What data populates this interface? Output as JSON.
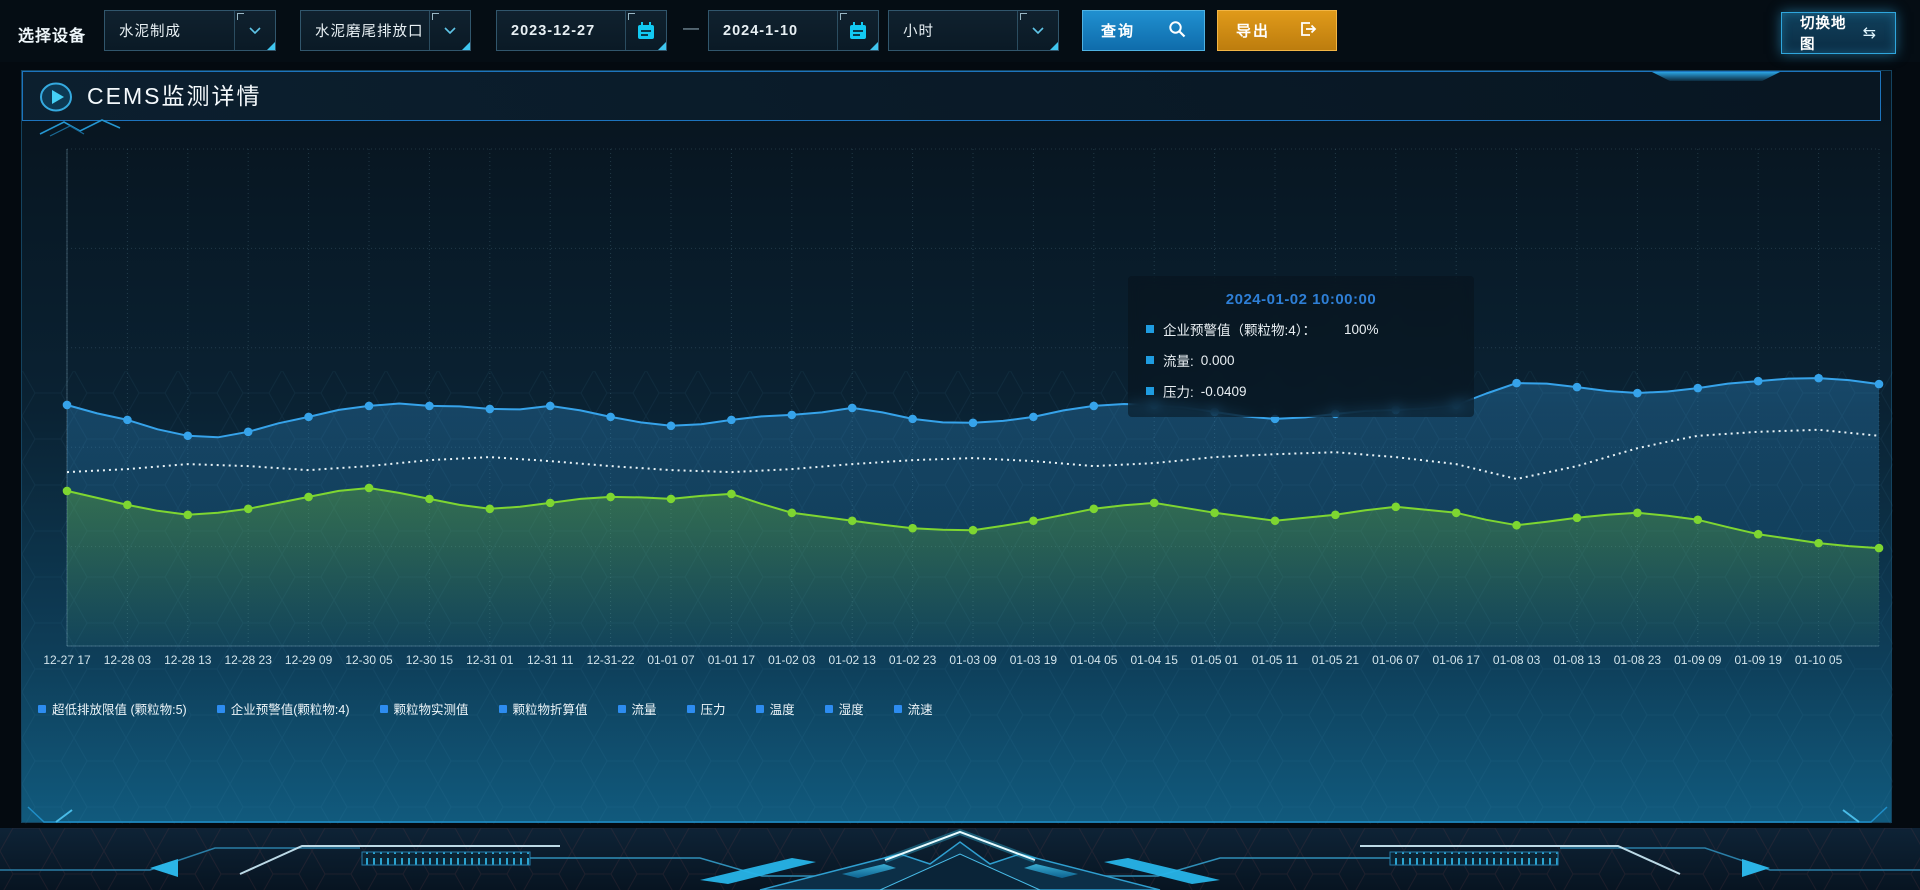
{
  "toolbar": {
    "device_label": "选择设备",
    "select_process": "水泥制成",
    "select_outlet": "水泥磨尾排放口",
    "date_start": "2023-12-27",
    "date_separator": "—",
    "date_end": "2024-1-10",
    "select_interval": "小时",
    "query_label": "查询",
    "export_label": "导出",
    "switch_map_label": "切换地图",
    "swap_icon_glyph": "⇆"
  },
  "panel": {
    "title": "CEMS监测详情"
  },
  "tooltip": {
    "title": "2024-01-02 10:00:00",
    "rows": [
      {
        "label": "企业预警值（颗粒物:4）：",
        "value": "100%"
      },
      {
        "label": "流量:",
        "value": "0.000"
      },
      {
        "label": "压力:",
        "value": "-0.0409"
      }
    ]
  },
  "legend": [
    "超低排放限值 (颗粒物:5)",
    "企业预警值(颗粒物:4)",
    "颗粒物实测值",
    "颗粒物折算值",
    "流量",
    "压力",
    "温度",
    "湿度",
    "流速"
  ],
  "icons": {
    "query_button": "search-icon",
    "export_button": "export-arrow-icon",
    "date_fields": "calendar-icon",
    "selects": "chevron-down-icon",
    "switch_map": "swap-arrows-icon",
    "panel_title": "play-icon"
  },
  "colors": {
    "accent_cyan": "#35c8f0",
    "accent_blue_border": "#2fa6dd",
    "button_query": "#1377b6",
    "button_export": "#cf8c12",
    "series_blue": "#36a3ea",
    "series_green": "#7ed631",
    "series_white_dotted": "#e9f3f7",
    "legend_marker": "#2d8cf0",
    "tooltip_title": "#2e7fd6",
    "x_label": "#d3e5ec"
  },
  "chart_data": {
    "type": "line",
    "title": "",
    "xlabel": "",
    "ylabel": "",
    "y_axis_labels_visible": false,
    "value_unit_note": "y-axis has no visible tick labels; values are estimated as percent of plot height (0 = bottom axis, 100 = top gridline). Two data points per labelled x interval.",
    "ylim": [
      0,
      100
    ],
    "grid": true,
    "legend_position": "bottom",
    "categories": [
      "12-27 17",
      "12-28 03",
      "12-28 13",
      "12-28 23",
      "12-29 09",
      "12-30 05",
      "12-30 15",
      "12-31 01",
      "12-31 11",
      "12-31-22",
      "01-01 07",
      "01-01 17",
      "01-02 03",
      "01-02 13",
      "01-02 23",
      "01-03 09",
      "01-03 19",
      "01-04 05",
      "01-04 15",
      "01-05 01",
      "01-05 11",
      "01-05 21",
      "01-06 07",
      "01-06 17",
      "01-08 03",
      "01-08 13",
      "01-08 23",
      "01-09 09",
      "01-09 19",
      "01-10 05"
    ],
    "series": [
      {
        "name": "企业预警值(颗粒物:4)",
        "color": "#36a3ea",
        "style": "solid",
        "symbols": true,
        "area": true,
        "values": [
          48.5,
          46.8,
          45.5,
          43.6,
          42.3,
          42.0,
          43.1,
          44.8,
          46.1,
          47.5,
          48.3,
          48.8,
          48.3,
          48.2,
          47.7,
          47.6,
          48.3,
          47.4,
          46.1,
          45.0,
          44.3,
          44.6,
          45.5,
          46.2,
          46.5,
          47.0,
          47.9,
          47.0,
          45.7,
          45.0,
          44.9,
          45.3,
          46.1,
          47.4,
          48.3,
          48.7,
          48.5,
          48.0,
          47.1,
          46.2,
          45.7,
          46.0,
          46.7,
          47.3,
          47.5,
          47.8,
          48.5,
          50.8,
          52.9,
          52.8,
          52.1,
          51.3,
          50.9,
          51.2,
          51.9,
          52.8,
          53.3,
          53.8,
          53.9,
          53.5,
          52.7
        ]
      },
      {
        "name": "压力",
        "color": "#e9f3f7",
        "style": "dotted",
        "symbols": false,
        "area": false,
        "values": [
          35.0,
          35.3,
          35.6,
          36.1,
          36.6,
          36.4,
          36.2,
          35.8,
          35.4,
          35.8,
          36.2,
          36.8,
          37.4,
          37.7,
          38.0,
          37.6,
          37.2,
          36.7,
          36.2,
          35.8,
          35.4,
          35.2,
          35.0,
          35.3,
          35.6,
          36.1,
          36.6,
          37.0,
          37.4,
          37.6,
          37.8,
          37.5,
          37.2,
          36.7,
          36.2,
          36.5,
          36.8,
          37.4,
          38.0,
          38.3,
          38.6,
          38.8,
          39.0,
          38.5,
          38.0,
          37.3,
          36.6,
          35.1,
          33.6,
          34.9,
          36.2,
          38.0,
          39.8,
          41.1,
          42.3,
          42.7,
          43.1,
          43.3,
          43.5,
          42.9,
          42.3
        ]
      },
      {
        "name": "流量",
        "color": "#7ed631",
        "style": "solid",
        "symbols": true,
        "area": true,
        "values": [
          31.2,
          29.8,
          28.4,
          27.2,
          26.4,
          26.8,
          27.6,
          28.8,
          30.0,
          31.2,
          31.8,
          30.8,
          29.6,
          28.4,
          27.6,
          28.0,
          28.8,
          29.6,
          30.0,
          29.9,
          29.6,
          30.2,
          30.6,
          28.6,
          26.8,
          26.0,
          25.2,
          24.4,
          23.7,
          23.4,
          23.3,
          24.2,
          25.2,
          26.4,
          27.6,
          28.3,
          28.8,
          27.8,
          26.8,
          26.0,
          25.2,
          25.8,
          26.4,
          27.3,
          28.0,
          27.4,
          26.8,
          25.4,
          24.3,
          25.0,
          25.8,
          26.4,
          26.8,
          26.2,
          25.4,
          23.9,
          22.5,
          21.6,
          20.7,
          20.1,
          19.7
        ]
      }
    ]
  }
}
